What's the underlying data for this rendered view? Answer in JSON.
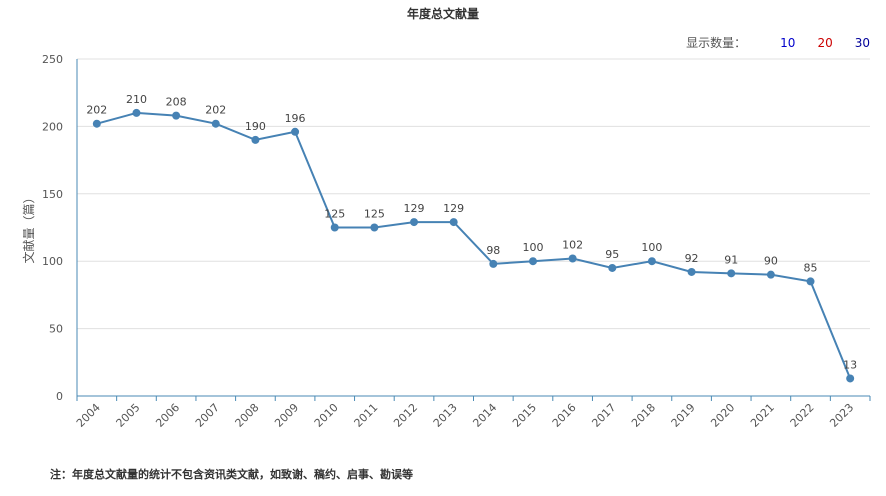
{
  "chart_data": {
    "type": "line",
    "title": "年度总文献量",
    "ylabel": "文献量（篇）",
    "xlabel": "",
    "x": [
      "2004",
      "2005",
      "2006",
      "2007",
      "2008",
      "2009",
      "2010",
      "2011",
      "2012",
      "2013",
      "2014",
      "2015",
      "2016",
      "2017",
      "2018",
      "2019",
      "2020",
      "2021",
      "2022",
      "2023"
    ],
    "series": [
      {
        "values": [
          202,
          210,
          208,
          202,
          190,
          196,
          125,
          125,
          129,
          129,
          98,
          100,
          102,
          95,
          100,
          92,
          91,
          90,
          85,
          13
        ]
      }
    ],
    "ylim": [
      0,
      250
    ],
    "yticks": [
      "0",
      "50",
      "100",
      "150",
      "200",
      "250"
    ],
    "grid": true,
    "line_color": "#4682b4"
  },
  "count_selector": {
    "label": "显示数量：",
    "options": [
      {
        "text": "10",
        "color": "#0000cc"
      },
      {
        "text": "20",
        "color": "#cc0000"
      },
      {
        "text": "30",
        "color": "#000099"
      }
    ]
  },
  "footnote": "注：年度总文献量的统计不包含资讯类文献，如致谢、稿约、启事、勘误等"
}
